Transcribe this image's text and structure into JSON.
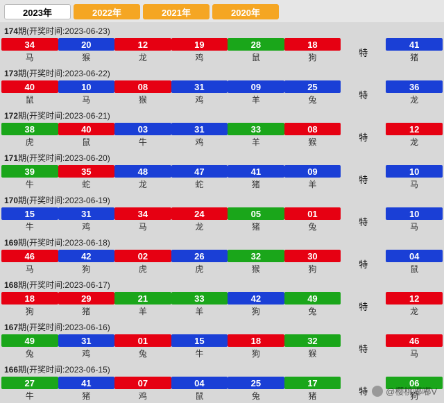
{
  "tabs": [
    {
      "label": "2023年",
      "active": true
    },
    {
      "label": "2022年",
      "active": false
    },
    {
      "label": "2021年",
      "active": false
    },
    {
      "label": "2020年",
      "active": false
    }
  ],
  "colors": {
    "red": "#e60012",
    "blue": "#1a3fd6",
    "green": "#1aa61a",
    "tab_inactive": "#f5a623",
    "background": "#d8d8d8"
  },
  "special_label": "特",
  "header_prefix": "期(开奖时间:",
  "header_suffix": ")",
  "watermark": "@樱桃嘟嘟V",
  "periods": [
    {
      "num": "174",
      "date": "2023-06-23",
      "balls": [
        {
          "n": "34",
          "c": "red",
          "z": "马"
        },
        {
          "n": "20",
          "c": "blue",
          "z": "猴"
        },
        {
          "n": "12",
          "c": "red",
          "z": "龙"
        },
        {
          "n": "19",
          "c": "red",
          "z": "鸡"
        },
        {
          "n": "28",
          "c": "green",
          "z": "鼠"
        },
        {
          "n": "18",
          "c": "red",
          "z": "狗"
        }
      ],
      "special": {
        "n": "41",
        "c": "blue",
        "z": "猪"
      }
    },
    {
      "num": "173",
      "date": "2023-06-22",
      "balls": [
        {
          "n": "40",
          "c": "red",
          "z": "鼠"
        },
        {
          "n": "10",
          "c": "blue",
          "z": "马"
        },
        {
          "n": "08",
          "c": "red",
          "z": "猴"
        },
        {
          "n": "31",
          "c": "blue",
          "z": "鸡"
        },
        {
          "n": "09",
          "c": "blue",
          "z": "羊"
        },
        {
          "n": "25",
          "c": "blue",
          "z": "兔"
        }
      ],
      "special": {
        "n": "36",
        "c": "blue",
        "z": "龙"
      }
    },
    {
      "num": "172",
      "date": "2023-06-21",
      "balls": [
        {
          "n": "38",
          "c": "green",
          "z": "虎"
        },
        {
          "n": "40",
          "c": "red",
          "z": "鼠"
        },
        {
          "n": "03",
          "c": "blue",
          "z": "牛"
        },
        {
          "n": "31",
          "c": "blue",
          "z": "鸡"
        },
        {
          "n": "33",
          "c": "green",
          "z": "羊"
        },
        {
          "n": "08",
          "c": "red",
          "z": "猴"
        }
      ],
      "special": {
        "n": "12",
        "c": "red",
        "z": "龙"
      }
    },
    {
      "num": "171",
      "date": "2023-06-20",
      "balls": [
        {
          "n": "39",
          "c": "green",
          "z": "牛"
        },
        {
          "n": "35",
          "c": "red",
          "z": "蛇"
        },
        {
          "n": "48",
          "c": "blue",
          "z": "龙"
        },
        {
          "n": "47",
          "c": "blue",
          "z": "蛇"
        },
        {
          "n": "41",
          "c": "blue",
          "z": "猪"
        },
        {
          "n": "09",
          "c": "blue",
          "z": "羊"
        }
      ],
      "special": {
        "n": "10",
        "c": "blue",
        "z": "马"
      }
    },
    {
      "num": "170",
      "date": "2023-06-19",
      "balls": [
        {
          "n": "15",
          "c": "blue",
          "z": "牛"
        },
        {
          "n": "31",
          "c": "blue",
          "z": "鸡"
        },
        {
          "n": "34",
          "c": "red",
          "z": "马"
        },
        {
          "n": "24",
          "c": "red",
          "z": "龙"
        },
        {
          "n": "05",
          "c": "green",
          "z": "猪"
        },
        {
          "n": "01",
          "c": "red",
          "z": "兔"
        }
      ],
      "special": {
        "n": "10",
        "c": "blue",
        "z": "马"
      }
    },
    {
      "num": "169",
      "date": "2023-06-18",
      "balls": [
        {
          "n": "46",
          "c": "red",
          "z": "马"
        },
        {
          "n": "42",
          "c": "blue",
          "z": "狗"
        },
        {
          "n": "02",
          "c": "red",
          "z": "虎"
        },
        {
          "n": "26",
          "c": "blue",
          "z": "虎"
        },
        {
          "n": "32",
          "c": "green",
          "z": "猴"
        },
        {
          "n": "30",
          "c": "red",
          "z": "狗"
        }
      ],
      "special": {
        "n": "04",
        "c": "blue",
        "z": "鼠"
      }
    },
    {
      "num": "168",
      "date": "2023-06-17",
      "balls": [
        {
          "n": "18",
          "c": "red",
          "z": "狗"
        },
        {
          "n": "29",
          "c": "red",
          "z": "猪"
        },
        {
          "n": "21",
          "c": "green",
          "z": "羊"
        },
        {
          "n": "33",
          "c": "green",
          "z": "羊"
        },
        {
          "n": "42",
          "c": "blue",
          "z": "狗"
        },
        {
          "n": "49",
          "c": "green",
          "z": "兔"
        }
      ],
      "special": {
        "n": "12",
        "c": "red",
        "z": "龙"
      }
    },
    {
      "num": "167",
      "date": "2023-06-16",
      "balls": [
        {
          "n": "49",
          "c": "green",
          "z": "兔"
        },
        {
          "n": "31",
          "c": "blue",
          "z": "鸡"
        },
        {
          "n": "01",
          "c": "red",
          "z": "兔"
        },
        {
          "n": "15",
          "c": "blue",
          "z": "牛"
        },
        {
          "n": "18",
          "c": "red",
          "z": "狗"
        },
        {
          "n": "32",
          "c": "green",
          "z": "猴"
        }
      ],
      "special": {
        "n": "46",
        "c": "red",
        "z": "马"
      }
    },
    {
      "num": "166",
      "date": "2023-06-15",
      "balls": [
        {
          "n": "27",
          "c": "green",
          "z": "牛"
        },
        {
          "n": "41",
          "c": "blue",
          "z": "猪"
        },
        {
          "n": "07",
          "c": "red",
          "z": "鸡"
        },
        {
          "n": "04",
          "c": "blue",
          "z": "鼠"
        },
        {
          "n": "25",
          "c": "blue",
          "z": "兔"
        },
        {
          "n": "17",
          "c": "green",
          "z": "猪"
        }
      ],
      "special": {
        "n": "06",
        "c": "green",
        "z": "狗"
      }
    }
  ]
}
